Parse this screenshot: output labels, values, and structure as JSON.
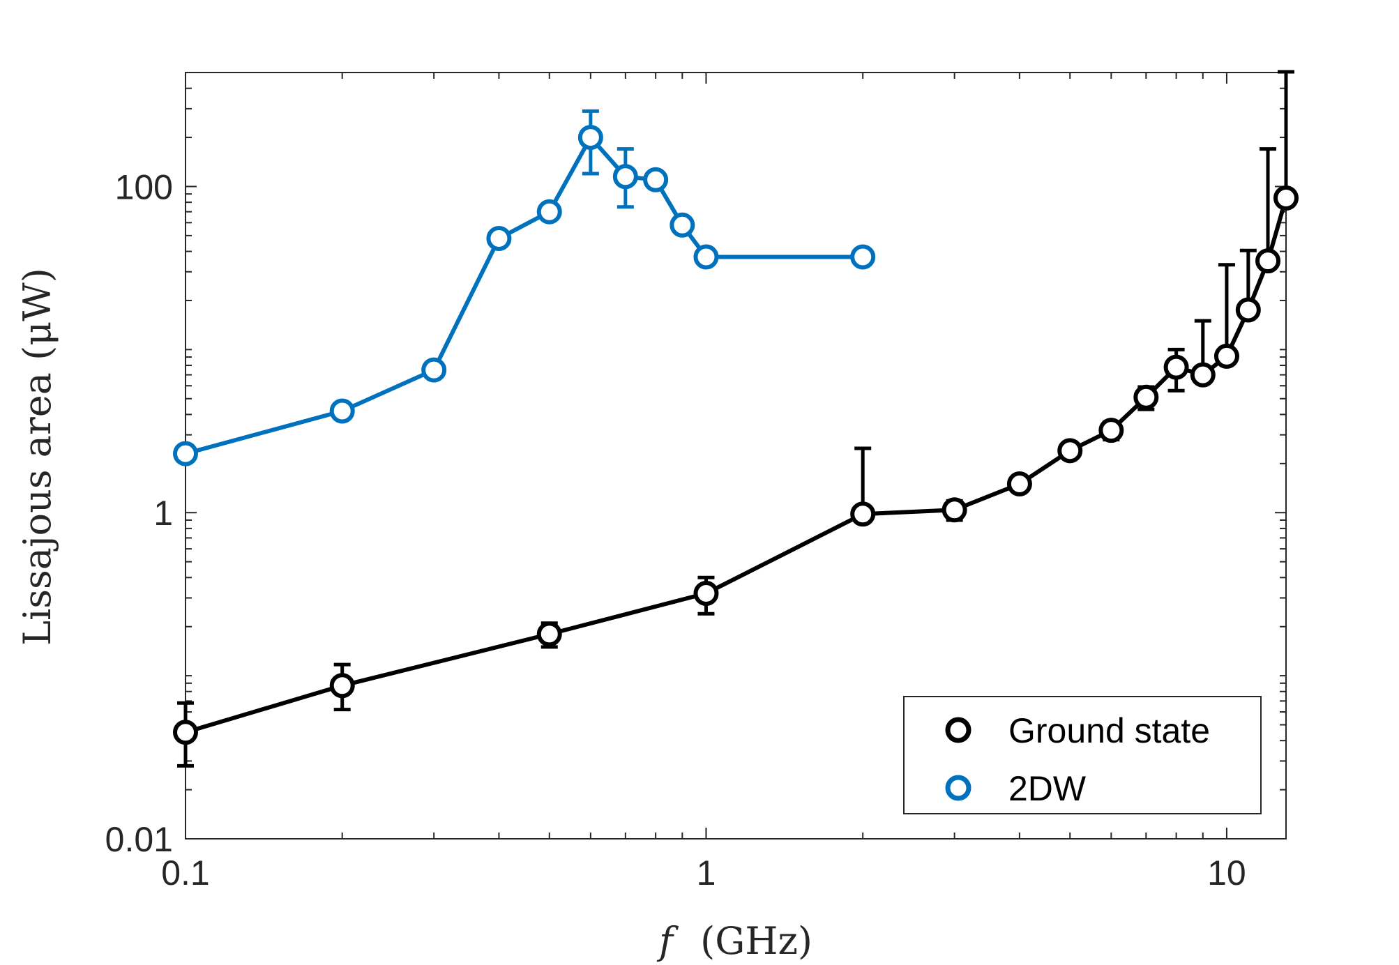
{
  "chart_data": {
    "type": "line",
    "xscale": "log",
    "yscale": "log",
    "xlim": [
      0.1,
      13
    ],
    "ylim": [
      0.01,
      500
    ],
    "xticks": [
      0.1,
      1,
      10
    ],
    "xtick_labels": [
      "0.1",
      "1",
      "10"
    ],
    "yticks": [
      0.01,
      1,
      100
    ],
    "ytick_labels": [
      "0.01",
      "1",
      "100"
    ],
    "xlabel_var": "f",
    "xlabel_unit": "(GHz)",
    "ylabel": "Lissajous area (μW)",
    "grid": false,
    "legend_position": "bottom-right",
    "series": [
      {
        "name": "Ground state",
        "color": "#000000",
        "x": [
          0.1,
          0.2,
          0.5,
          1,
          2,
          3,
          4,
          5,
          6,
          7,
          8,
          9,
          10,
          11,
          12,
          13
        ],
        "y": [
          0.045,
          0.087,
          0.18,
          0.32,
          0.98,
          1.04,
          1.5,
          2.4,
          3.2,
          5.1,
          7.8,
          7.0,
          9.1,
          17.5,
          35,
          85
        ],
        "err_lo": [
          0.017,
          0.025,
          0.03,
          0.08,
          0.0,
          0.14,
          0.15,
          0.25,
          0.4,
          0.8,
          2.2,
          0.0,
          0.0,
          0.0,
          0.0,
          0.0
        ],
        "err_hi": [
          0.023,
          0.03,
          0.03,
          0.08,
          1.5,
          0.14,
          0.15,
          0.25,
          0.4,
          0.8,
          2.2,
          8.0,
          24.0,
          23.0,
          135.0,
          420.0
        ]
      },
      {
        "name": "2DW",
        "color": "#0072BD",
        "x": [
          0.1,
          0.2,
          0.3,
          0.4,
          0.5,
          0.6,
          0.7,
          0.8,
          0.9,
          1,
          2
        ],
        "y": [
          2.3,
          4.2,
          7.5,
          48,
          70,
          200,
          115,
          110,
          58,
          37,
          37
        ],
        "err_lo": [
          0,
          0,
          0,
          0,
          0,
          80,
          40,
          0,
          0,
          0,
          0
        ],
        "err_hi": [
          0,
          0,
          0,
          0,
          0,
          90,
          55,
          0,
          0,
          0,
          0
        ]
      }
    ]
  }
}
